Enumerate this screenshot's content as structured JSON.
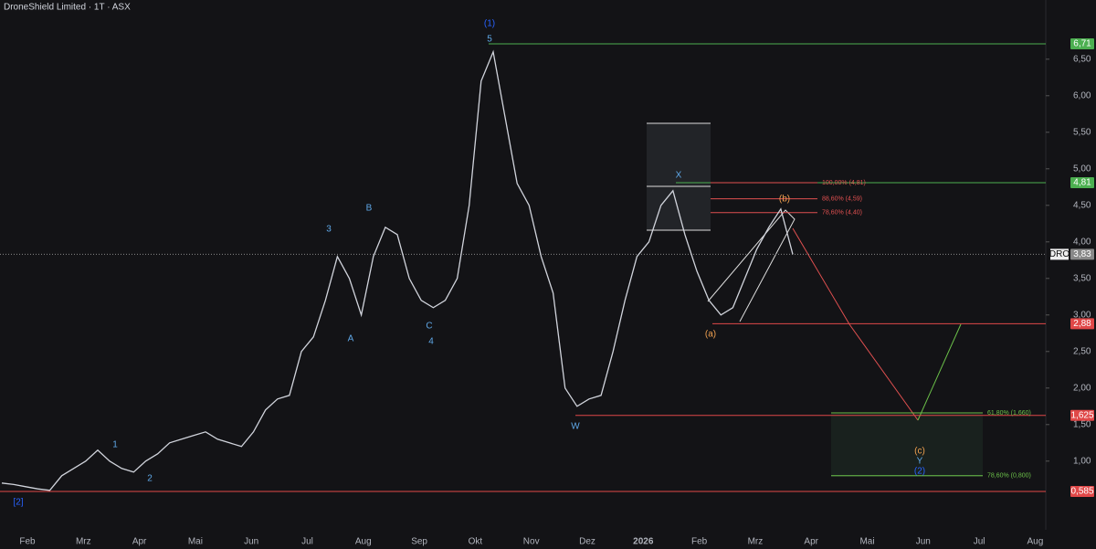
{
  "chart_data": {
    "type": "line",
    "title": "DroneShield Limited · 1T · ASX",
    "ticker": "DRO",
    "color": "#d1d4dc",
    "background": "#131316",
    "values": [
      0.7,
      0.68,
      0.65,
      0.62,
      0.6,
      0.8,
      0.9,
      1.0,
      1.15,
      1.0,
      0.9,
      0.85,
      1.0,
      1.1,
      1.25,
      1.3,
      1.35,
      1.4,
      1.3,
      1.25,
      1.2,
      1.4,
      1.7,
      1.85,
      1.9,
      2.5,
      2.7,
      3.2,
      3.8,
      3.5,
      3.0,
      3.8,
      4.2,
      4.1,
      3.5,
      3.2,
      3.1,
      3.2,
      3.5,
      4.5,
      6.2,
      6.6,
      5.7,
      4.8,
      4.5,
      3.8,
      3.3,
      2.0,
      1.75,
      1.85,
      1.9,
      2.5,
      3.2,
      3.8,
      4.0,
      4.5,
      4.7,
      4.1,
      3.6,
      3.2,
      3.0,
      3.1,
      3.5,
      3.9,
      4.2,
      4.45,
      3.83
    ],
    "ylim": [
      0.06,
      7.31
    ],
    "yticks": [
      {
        "value": 1.0,
        "label": "1,00"
      },
      {
        "value": 1.5,
        "label": "1,50"
      },
      {
        "value": 2.0,
        "label": "2,00"
      },
      {
        "value": 2.5,
        "label": "2,50"
      },
      {
        "value": 3.0,
        "label": "3,00"
      },
      {
        "value": 3.5,
        "label": "3,50"
      },
      {
        "value": 4.0,
        "label": "4,00"
      },
      {
        "value": 4.5,
        "label": "4,50"
      },
      {
        "value": 5.0,
        "label": "5,00"
      },
      {
        "value": 5.5,
        "label": "5,50"
      },
      {
        "value": 6.0,
        "label": "6,00"
      },
      {
        "value": 6.5,
        "label": "6,50"
      }
    ],
    "xticks": [
      "Feb",
      "Mrz",
      "Apr",
      "Mai",
      "Jun",
      "Jul",
      "Aug",
      "Sep",
      "Okt",
      "Nov",
      "Dez",
      "2026",
      "Feb",
      "Mrz",
      "Apr",
      "Mai",
      "Jun",
      "Jul",
      "Aug"
    ],
    "price_levels": [
      {
        "value": 6.71,
        "label": "6,71",
        "color": "#4caf50"
      },
      {
        "value": 4.81,
        "label": "4,81",
        "color": "#4caf50"
      },
      {
        "value": 3.83,
        "label": "3,83",
        "color": "#888888"
      },
      {
        "value": 2.88,
        "label": "2,88",
        "color": "#e04848"
      },
      {
        "value": 1.625,
        "label": "1,625",
        "color": "#e04848"
      },
      {
        "value": 0.585,
        "label": "0,585",
        "color": "#e04848"
      }
    ],
    "fib_levels": [
      {
        "value": 4.81,
        "label": "100,00% (4,81)",
        "color": "#e05050"
      },
      {
        "value": 4.59,
        "label": "88,60% (4,59)",
        "color": "#e05050"
      },
      {
        "value": 4.4,
        "label": "78,60% (4,40)",
        "color": "#e05050"
      },
      {
        "value": 1.66,
        "label": "61,80% (1,660)",
        "color": "#6cc24a"
      },
      {
        "value": 0.8,
        "label": "78,60% (0,800)",
        "color": "#6cc24a"
      }
    ],
    "wave_labels": [
      {
        "text": "[2]",
        "color": "#2962ff"
      },
      {
        "text": "1",
        "color": "#5fa8e8"
      },
      {
        "text": "2",
        "color": "#5fa8e8"
      },
      {
        "text": "3",
        "color": "#5fa8e8"
      },
      {
        "text": "A",
        "color": "#5fa8e8"
      },
      {
        "text": "B",
        "color": "#5fa8e8"
      },
      {
        "text": "C",
        "color": "#5fa8e8"
      },
      {
        "text": "4",
        "color": "#5fa8e8"
      },
      {
        "text": "(1)",
        "color": "#2962ff"
      },
      {
        "text": "5",
        "color": "#5fa8e8"
      },
      {
        "text": "W",
        "color": "#5fa8e8"
      },
      {
        "text": "X",
        "color": "#5fa8e8"
      },
      {
        "text": "(a)",
        "color": "#f0a050"
      },
      {
        "text": "(b)",
        "color": "#f0a050"
      },
      {
        "text": "(c)",
        "color": "#f0a050"
      },
      {
        "text": "Y",
        "color": "#5fa8e8"
      },
      {
        "text": "(2)",
        "color": "#2962ff"
      }
    ]
  }
}
